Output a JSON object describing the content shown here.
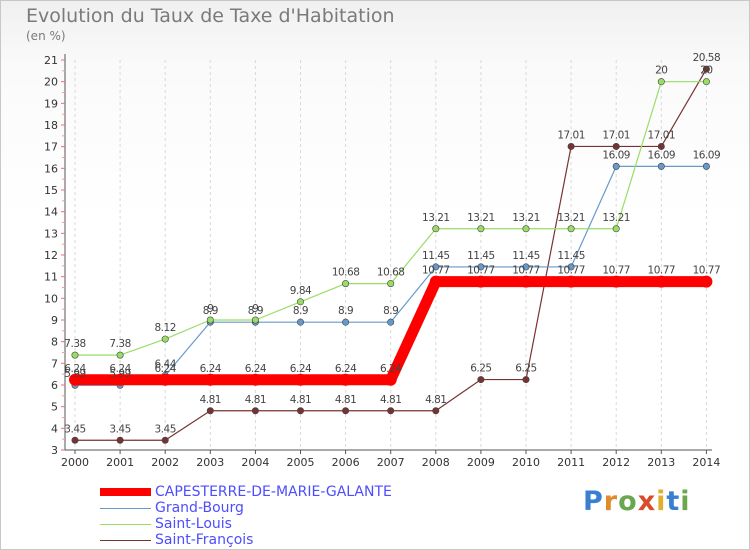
{
  "title": "Evolution du Taux de Taxe d'Habitation",
  "subtitle": "(en %)",
  "brand": "Proxiti",
  "chart_data": {
    "type": "line",
    "title": "Evolution du Taux de Taxe d'Habitation",
    "ylabel": "(en %)",
    "xlabel": "",
    "x": [
      "2000",
      "2001",
      "2002",
      "2003",
      "2004",
      "2005",
      "2006",
      "2007",
      "2008",
      "2009",
      "2010",
      "2011",
      "2012",
      "2013",
      "2014"
    ],
    "ylim": [
      3,
      21
    ],
    "yticks": [
      3,
      4,
      5,
      6,
      7,
      8,
      9,
      10,
      11,
      12,
      13,
      14,
      15,
      16,
      17,
      18,
      19,
      20,
      21
    ],
    "grid": "vertical-dashed",
    "legend_position": "bottom-left",
    "series": [
      {
        "name": "CAPESTERRE-DE-MARIE-GALANTE",
        "color": "#ff0000",
        "values": [
          6.24,
          6.24,
          6.24,
          6.24,
          6.24,
          6.24,
          6.24,
          6.24,
          10.77,
          10.77,
          10.77,
          10.77,
          10.77,
          10.77,
          10.77
        ],
        "labels": [
          "6.24",
          "6.24",
          "6.24",
          "6.24",
          "6.24",
          "6.24",
          "6.24",
          "6.24",
          "10.77",
          "10.77",
          "10.77",
          "10.77",
          "10.77",
          "10.77",
          "10.77"
        ]
      },
      {
        "name": "Grand-Bourg",
        "color": "#6699cc",
        "values": [
          5.99,
          5.99,
          6.44,
          8.9,
          8.9,
          8.9,
          8.9,
          8.9,
          11.45,
          11.45,
          11.45,
          11.45,
          16.09,
          16.09,
          16.09
        ],
        "labels": [
          "5.99",
          "5.99",
          "6.44",
          "8.9",
          "8.9",
          "8.9",
          "8.9",
          "8.9",
          "11.45",
          "11.45",
          "11.45",
          "11.45",
          "16.09",
          "16.09",
          "16.09"
        ]
      },
      {
        "name": "Saint-Louis",
        "color": "#99dd66",
        "values": [
          7.38,
          7.38,
          8.12,
          9,
          9,
          9.84,
          10.68,
          10.68,
          13.21,
          13.21,
          13.21,
          13.21,
          13.21,
          20,
          20
        ],
        "labels": [
          "7.38",
          "7.38",
          "8.12",
          "9",
          "9",
          "9.84",
          "10.68",
          "10.68",
          "13.21",
          "13.21",
          "13.21",
          "13.21",
          "13.21",
          "20",
          "20"
        ]
      },
      {
        "name": "Saint-François",
        "color": "#773333",
        "values": [
          3.45,
          3.45,
          3.45,
          4.81,
          4.81,
          4.81,
          4.81,
          4.81,
          4.81,
          6.25,
          6.25,
          17.01,
          17.01,
          17.01,
          20.58
        ],
        "labels": [
          "3.45",
          "3.45",
          "3.45",
          "4.81",
          "4.81",
          "4.81",
          "4.81",
          "4.81",
          "4.81",
          "6.25",
          "6.25",
          "17.01",
          "17.01",
          "17.01",
          "20.58"
        ]
      }
    ]
  }
}
